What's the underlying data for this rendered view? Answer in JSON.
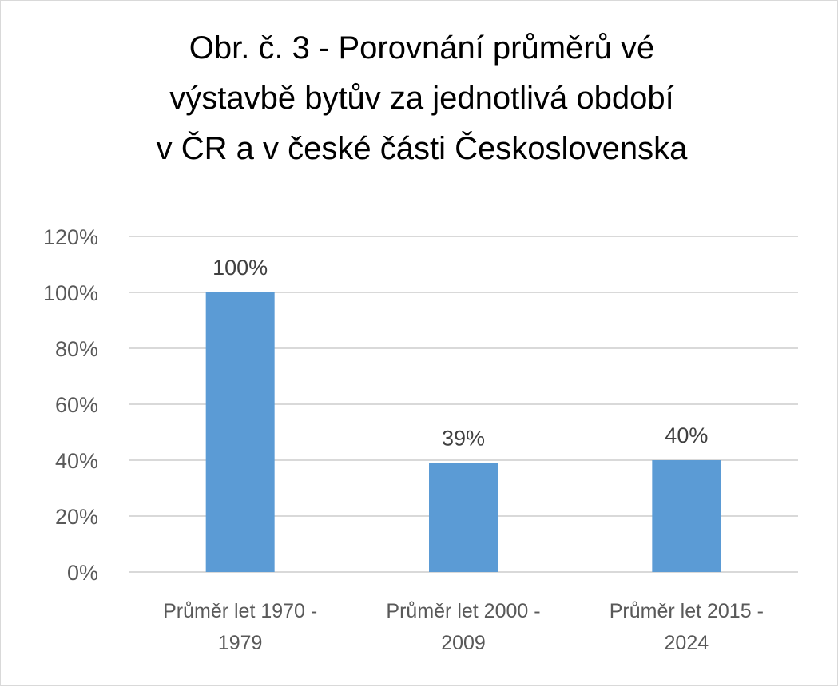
{
  "chart_data": {
    "type": "bar",
    "title_lines": [
      "Obr. č. 3 - Porovnání průměrů vé",
      "výstavbě bytův za  jednotlivá období",
      "v ČR a v české části Československa"
    ],
    "categories": [
      "Průměr let 1970 - 1979",
      "Průměr let 2000 - 2009",
      "Průměr let 2015 - 2024"
    ],
    "values": [
      100,
      39,
      40
    ],
    "data_labels": [
      "100%",
      "39%",
      "40%"
    ],
    "y_ticks": [
      "0%",
      "20%",
      "40%",
      "60%",
      "80%",
      "100%",
      "120%"
    ],
    "ylim": [
      0,
      120
    ],
    "xlabel": "",
    "ylabel": "",
    "grid": true,
    "legend": "none",
    "colors": {
      "bar": "#5b9bd5",
      "grid": "#d9d9d9"
    }
  }
}
